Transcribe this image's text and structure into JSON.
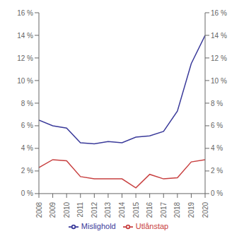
{
  "chart_data": {
    "type": "line",
    "x": [
      2008,
      2009,
      2010,
      2011,
      2012,
      2013,
      2014,
      2015,
      2016,
      2017,
      2018,
      2019,
      2020
    ],
    "xlim": [
      2008,
      2020
    ],
    "xticks": [
      2008,
      2009,
      2010,
      2011,
      2012,
      2013,
      2014,
      2015,
      2016,
      2017,
      2018,
      2019,
      2020
    ],
    "series": [
      {
        "name": "Mislighold",
        "color": "#3a3a9a",
        "values": [
          6.5,
          6.0,
          5.8,
          4.5,
          4.4,
          4.6,
          4.5,
          5.0,
          5.1,
          5.5,
          7.3,
          11.5,
          14.0
        ]
      },
      {
        "name": "Utlånstap",
        "color": "#c84040",
        "values": [
          2.3,
          3.0,
          2.9,
          1.5,
          1.3,
          1.3,
          1.3,
          0.5,
          1.7,
          1.3,
          1.4,
          2.8,
          3.0
        ]
      }
    ],
    "ylim": [
      0,
      16
    ],
    "yticks": [
      {
        "value": 0,
        "label": "0 %"
      },
      {
        "value": 2,
        "label": "2 %"
      },
      {
        "value": 4,
        "label": "4 %"
      },
      {
        "value": 6,
        "label": "6 %"
      },
      {
        "value": 8,
        "label": "8 %"
      },
      {
        "value": 10,
        "label": "10 %"
      },
      {
        "value": 12,
        "label": "12 %"
      },
      {
        "value": 14,
        "label": "14 %"
      },
      {
        "value": 16,
        "label": "16 %"
      }
    ],
    "y2lim": [
      0,
      16
    ],
    "y2ticks": [
      {
        "value": 0,
        "label": "0 %"
      },
      {
        "value": 2,
        "label": "2 %"
      },
      {
        "value": 4,
        "label": "4 %"
      },
      {
        "value": 6,
        "label": "6 %"
      },
      {
        "value": 8,
        "label": "8 %"
      },
      {
        "value": 10,
        "label": "10 %"
      },
      {
        "value": 12,
        "label": "12 %"
      },
      {
        "value": 14,
        "label": "14 %"
      },
      {
        "value": 16,
        "label": "16 %"
      }
    ],
    "grid": false,
    "legend": "bottom"
  }
}
